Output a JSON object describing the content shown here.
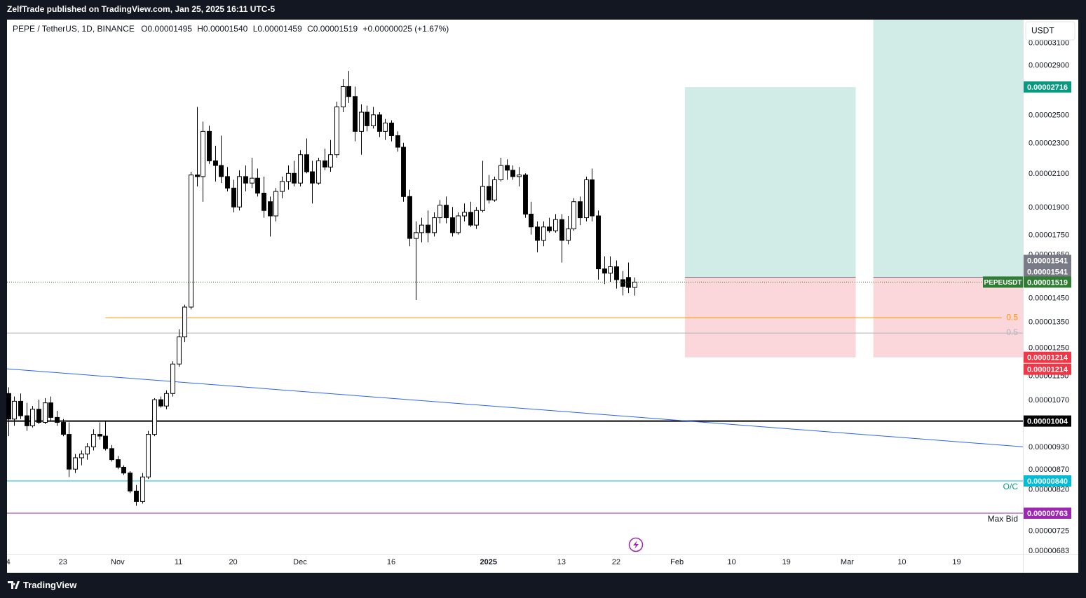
{
  "header": "ZelfTrade published on TradingView.com, Jan 25, 2025 16:11 UTC-5",
  "footer": "TradingView",
  "chart_data": {
    "type": "candlestick",
    "symbol": "PEPE / TetherUS, 1D, BINANCE",
    "ohlc_legend": [
      "O0.00001495",
      "H0.00001540",
      "L0.00001459",
      "C0.00001519",
      "+0.00000025 (+1.67%)"
    ],
    "currency": "USDT",
    "log_scale": true,
    "xlim": [
      -0.2,
      166.9
    ],
    "xticks": [
      {
        "value": 0,
        "label": "4"
      },
      {
        "value": 9,
        "label": "23"
      },
      {
        "value": 18,
        "label": "Nov"
      },
      {
        "value": 28,
        "label": "11"
      },
      {
        "value": 37,
        "label": "20"
      },
      {
        "value": 48,
        "label": "Dec"
      },
      {
        "value": 63,
        "label": "16"
      },
      {
        "value": 79,
        "label": "2025"
      },
      {
        "value": 91,
        "label": "13"
      },
      {
        "value": 100,
        "label": "22"
      },
      {
        "value": 110,
        "label": "Feb"
      },
      {
        "value": 119,
        "label": "10"
      },
      {
        "value": 128,
        "label": "19"
      },
      {
        "value": 138,
        "label": "Mar"
      },
      {
        "value": 147,
        "label": "10"
      },
      {
        "value": 156,
        "label": "19"
      }
    ],
    "ylim": [
      6.76e-06,
      3.32e-05
    ],
    "yticks": [
      {
        "value": 3.1e-05,
        "label": "0.00003100"
      },
      {
        "value": 2.9e-05,
        "label": "0.00002900"
      },
      {
        "value": 2.5e-05,
        "label": "0.00002500"
      },
      {
        "value": 2.3e-05,
        "label": "0.00002300"
      },
      {
        "value": 2.1e-05,
        "label": "0.00002100"
      },
      {
        "value": 1.9e-05,
        "label": "0.00001900"
      },
      {
        "value": 1.75e-05,
        "label": "0.00001750"
      },
      {
        "value": 1.65e-05,
        "label": "0.00001650"
      },
      {
        "value": 1.45e-05,
        "label": "0.00001450"
      },
      {
        "value": 1.35e-05,
        "label": "0.00001350"
      },
      {
        "value": 1.25e-05,
        "label": "0.00001250"
      },
      {
        "value": 1.15e-05,
        "label": "0.00001150"
      },
      {
        "value": 1.07e-05,
        "label": "0.00001070"
      },
      {
        "value": 9.3e-06,
        "label": "0.00000930"
      },
      {
        "value": 8.7e-06,
        "label": "0.00000870"
      },
      {
        "value": 8.2e-06,
        "label": "0.00000820"
      },
      {
        "value": 7.25e-06,
        "label": "0.00000725"
      },
      {
        "value": 6.83e-06,
        "label": "0.00000683"
      }
    ],
    "up_color": "#ffffff",
    "down_color": "#000000",
    "wick_color": "#000000",
    "open": [
      1.09e-05,
      1.01e-05,
      1.065e-05,
      1.02e-05,
      9.9e-06,
      1.04e-05,
      1e-05,
      1.06e-05,
      1.015e-05,
      1e-05,
      9.65e-06,
      8.7e-06,
      9e-06,
      9.1e-06,
      9.3e-06,
      9.65e-06,
      9.6e-06,
      9.25e-06,
      8.95e-06,
      8.75e-06,
      8.6e-06,
      8.15e-06,
      7.9e-06,
      8.5e-06,
      9.65e-06,
      1.07e-05,
      1.05e-05,
      1.09e-05,
      1.19e-05,
      1.29e-05,
      1.41e-05,
      2.09e-05,
      2.08e-05,
      2.38e-05,
      2.18e-05,
      2.15e-05,
      2.08e-05,
      2.01e-05,
      1.9e-05,
      2.08e-05,
      2.04e-05,
      2.07e-05,
      1.98e-05,
      1.93e-05,
      1.85e-05,
      1.99e-05,
      2.05e-05,
      2.1e-05,
      2.04e-05,
      2.22e-05,
      2.11e-05,
      2.04e-05,
      2.18e-05,
      2.14e-05,
      2.22e-05,
      2.56e-05,
      2.72e-05,
      2.64e-05,
      2.38e-05,
      2.52e-05,
      2.42e-05,
      2.5e-05,
      2.38e-05,
      2.44e-05,
      2.35e-05,
      2.27e-05,
      1.96e-05,
      1.73e-05,
      1.76e-05,
      1.8e-05,
      1.76e-05,
      1.84e-05,
      1.91e-05,
      1.84e-05,
      1.76e-05,
      1.85e-05,
      1.87e-05,
      1.8e-05,
      1.88e-05,
      2.02e-05,
      1.94e-05,
      2.06e-05,
      2.15e-05,
      2.12e-05,
      2.08e-05,
      2.09e-05,
      1.86e-05,
      1.79e-05,
      1.72e-05,
      1.79e-05,
      1.77e-05,
      1.83e-05,
      1.72e-05,
      1.78e-05,
      1.93e-05,
      1.84e-05,
      2.06e-05,
      1.85e-05,
      1.58e-05,
      1.56e-05,
      1.59e-05,
      1.53e-05,
      1.54e-05,
      1.495e-05
    ],
    "high": [
      1.11e-05,
      1.08e-05,
      1.09e-05,
      1.06e-05,
      1.05e-05,
      1.07e-05,
      1.075e-05,
      1.08e-05,
      1.035e-05,
      1.01e-05,
      1e-05,
      9.1e-06,
      9.2e-06,
      9.4e-06,
      9.8e-06,
      1e-05,
      1.005e-05,
      9.35e-06,
      9.05e-06,
      8.8e-06,
      8.65e-06,
      8.3e-06,
      8.6e-06,
      9.75e-06,
      1.075e-05,
      1.08e-05,
      1.1e-05,
      1.2e-05,
      1.32e-05,
      1.42e-05,
      2.11e-05,
      2.56e-05,
      2.45e-05,
      2.42e-05,
      2.28e-05,
      2.35e-05,
      2.14e-05,
      2.06e-05,
      2.12e-05,
      2.15e-05,
      2.2e-05,
      2.13e-05,
      2.08e-05,
      1.96e-05,
      2.01e-05,
      2.08e-05,
      2.15e-05,
      2.18e-05,
      2.25e-05,
      2.33e-05,
      2.18e-05,
      2.2e-05,
      2.26e-05,
      2.32e-05,
      2.6e-05,
      2.78e-05,
      2.85e-05,
      2.72e-05,
      2.58e-05,
      2.57e-05,
      2.56e-05,
      2.52e-05,
      2.47e-05,
      2.46e-05,
      2.38e-05,
      2.3e-05,
      2e-05,
      1.82e-05,
      1.84e-05,
      1.88e-05,
      1.87e-05,
      1.94e-05,
      1.96e-05,
      1.9e-05,
      1.87e-05,
      1.92e-05,
      1.93e-05,
      1.9e-05,
      2.18e-05,
      2.09e-05,
      2.08e-05,
      2.2e-05,
      2.19e-05,
      2.15e-05,
      2.14e-05,
      2.1e-05,
      1.93e-05,
      1.82e-05,
      1.82e-05,
      1.84e-05,
      1.86e-05,
      1.86e-05,
      1.85e-05,
      1.95e-05,
      1.96e-05,
      2.08e-05,
      2.13e-05,
      1.88e-05,
      1.64e-05,
      1.64e-05,
      1.62e-05,
      1.57e-05,
      1.61e-05,
      1.54e-05
    ],
    "low": [
      9.6e-06,
      9.9e-06,
      1.01e-05,
      9.75e-06,
      9.85e-06,
      9.95e-06,
      9.95e-06,
      1.005e-05,
      9.9e-06,
      9.6e-06,
      8.5e-06,
      8.6e-06,
      8.8e-06,
      8.95e-06,
      9.2e-06,
      9.5e-06,
      9.2e-06,
      8.9e-06,
      8.7e-06,
      8.55e-06,
      8.1e-06,
      7.8e-06,
      7.85e-06,
      8.45e-06,
      9.6e-06,
      1.045e-05,
      1.04e-05,
      1.08e-05,
      1.18e-05,
      1.27e-05,
      1.4e-05,
      2.02e-05,
      1.93e-05,
      2.16e-05,
      2.05e-05,
      2.04e-05,
      1.99e-05,
      1.87e-05,
      1.88e-05,
      1.99e-05,
      2.01e-05,
      1.96e-05,
      1.84e-05,
      1.74e-05,
      1.82e-05,
      1.95e-05,
      2e-05,
      2.02e-05,
      2.02e-05,
      2.1e-05,
      1.92e-05,
      2.03e-05,
      2.12e-05,
      2.11e-05,
      2.2e-05,
      2.52e-05,
      2.59e-05,
      2.31e-05,
      2.22e-05,
      2.38e-05,
      2.4e-05,
      2.34e-05,
      2.32e-05,
      2.31e-05,
      2.24e-05,
      1.93e-05,
      1.69e-05,
      1.44e-05,
      1.71e-05,
      1.71e-05,
      1.74e-05,
      1.81e-05,
      1.81e-05,
      1.74e-05,
      1.75e-05,
      1.82e-05,
      1.79e-05,
      1.78e-05,
      1.87e-05,
      1.92e-05,
      1.93e-05,
      2.05e-05,
      2.06e-05,
      2.06e-05,
      2.02e-05,
      1.84e-05,
      1.75e-05,
      1.66e-05,
      1.69e-05,
      1.76e-05,
      1.76e-05,
      1.61e-05,
      1.7e-05,
      1.77e-05,
      1.8e-05,
      1.82e-05,
      1.82e-05,
      1.53e-05,
      1.51e-05,
      1.52e-05,
      1.49e-05,
      1.46e-05,
      1.47e-05,
      1.459e-05
    ],
    "close": [
      1.01e-05,
      1.065e-05,
      1.02e-05,
      9.9e-06,
      1.04e-05,
      1e-05,
      1.06e-05,
      1.015e-05,
      1e-05,
      9.65e-06,
      8.7e-06,
      9e-06,
      9.1e-06,
      9.3e-06,
      9.65e-06,
      9.6e-06,
      9.25e-06,
      8.95e-06,
      8.75e-06,
      8.6e-06,
      8.15e-06,
      7.9e-06,
      8.5e-06,
      9.65e-06,
      1.07e-05,
      1.05e-05,
      1.09e-05,
      1.19e-05,
      1.29e-05,
      1.41e-05,
      2.09e-05,
      2.08e-05,
      2.38e-05,
      2.18e-05,
      2.15e-05,
      2.08e-05,
      2.01e-05,
      1.9e-05,
      2.08e-05,
      2.04e-05,
      2.07e-05,
      1.98e-05,
      1.88e-05,
      1.85e-05,
      1.99e-05,
      2.05e-05,
      2.1e-05,
      2.04e-05,
      2.22e-05,
      2.11e-05,
      2.04e-05,
      2.18e-05,
      2.14e-05,
      2.22e-05,
      2.56e-05,
      2.72e-05,
      2.64e-05,
      2.38e-05,
      2.52e-05,
      2.42e-05,
      2.5e-05,
      2.38e-05,
      2.44e-05,
      2.35e-05,
      2.27e-05,
      1.96e-05,
      1.73e-05,
      1.76e-05,
      1.8e-05,
      1.76e-05,
      1.84e-05,
      1.91e-05,
      1.84e-05,
      1.76e-05,
      1.85e-05,
      1.87e-05,
      1.8e-05,
      1.88e-05,
      2.02e-05,
      1.94e-05,
      2.06e-05,
      2.15e-05,
      2.12e-05,
      2.08e-05,
      2.09e-05,
      1.86e-05,
      1.79e-05,
      1.72e-05,
      1.79e-05,
      1.77e-05,
      1.83e-05,
      1.72e-05,
      1.78e-05,
      1.93e-05,
      1.84e-05,
      2.06e-05,
      1.85e-05,
      1.58e-05,
      1.56e-05,
      1.59e-05,
      1.53e-05,
      1.5e-05,
      1.495e-05,
      1.519e-05
    ],
    "trendline": {
      "x": [
        -0.2,
        166.9
      ],
      "y": [
        1.173e-05,
        9.3e-06
      ],
      "color": "#2962ff"
    },
    "levels": [
      {
        "value": 1.366e-05,
        "label": "0.5",
        "color": "#ff9800",
        "start": 16
      },
      {
        "value": 1.305e-05,
        "label": "0.5",
        "color": "#b2b5be"
      },
      {
        "value": 1.004e-05,
        "color": "#000000"
      },
      {
        "value": 8.4e-06,
        "label": "O/C",
        "color": "#00bcd4"
      },
      {
        "value": 7.63e-06,
        "label": "Max Bid",
        "color": "#9c27b0"
      }
    ],
    "positions": [
      {
        "start": 111.3,
        "end": 139.4,
        "entry": 1.541e-05,
        "target": 2.716e-05,
        "stop": 1.214e-05
      },
      {
        "start": 142.3,
        "end": 166.9,
        "entry": 1.541e-05,
        "target": null,
        "stop": 1.214e-05
      }
    ],
    "profit_color": "#d1ebe6",
    "loss_color": "#fbd6da",
    "price_tags": [
      {
        "value": 2.716e-05,
        "label": "0.00002716",
        "color": "#089981"
      },
      {
        "value": 1.541e-05,
        "label": "0.00001541",
        "color": "#787b86"
      },
      {
        "value": 1.541e-05,
        "label": "0.00001541",
        "color": "#787b86"
      },
      {
        "value": 1.519e-05,
        "label": "0.00001519",
        "name": "PEPEUSDT",
        "color": "#2e7d32"
      },
      {
        "value": 1.214e-05,
        "label": "0.00001214",
        "color": "#f23645"
      },
      {
        "value": 1.214e-05,
        "label": "0.00001214",
        "color": "#f23645"
      },
      {
        "value": 1.004e-05,
        "label": "0.00001004",
        "color": "#000000"
      },
      {
        "value": 8.4e-06,
        "label": "0.00000840",
        "color": "#00bcd4"
      },
      {
        "value": 7.63e-06,
        "label": "0.00000763",
        "color": "#9c27b0"
      }
    ]
  }
}
